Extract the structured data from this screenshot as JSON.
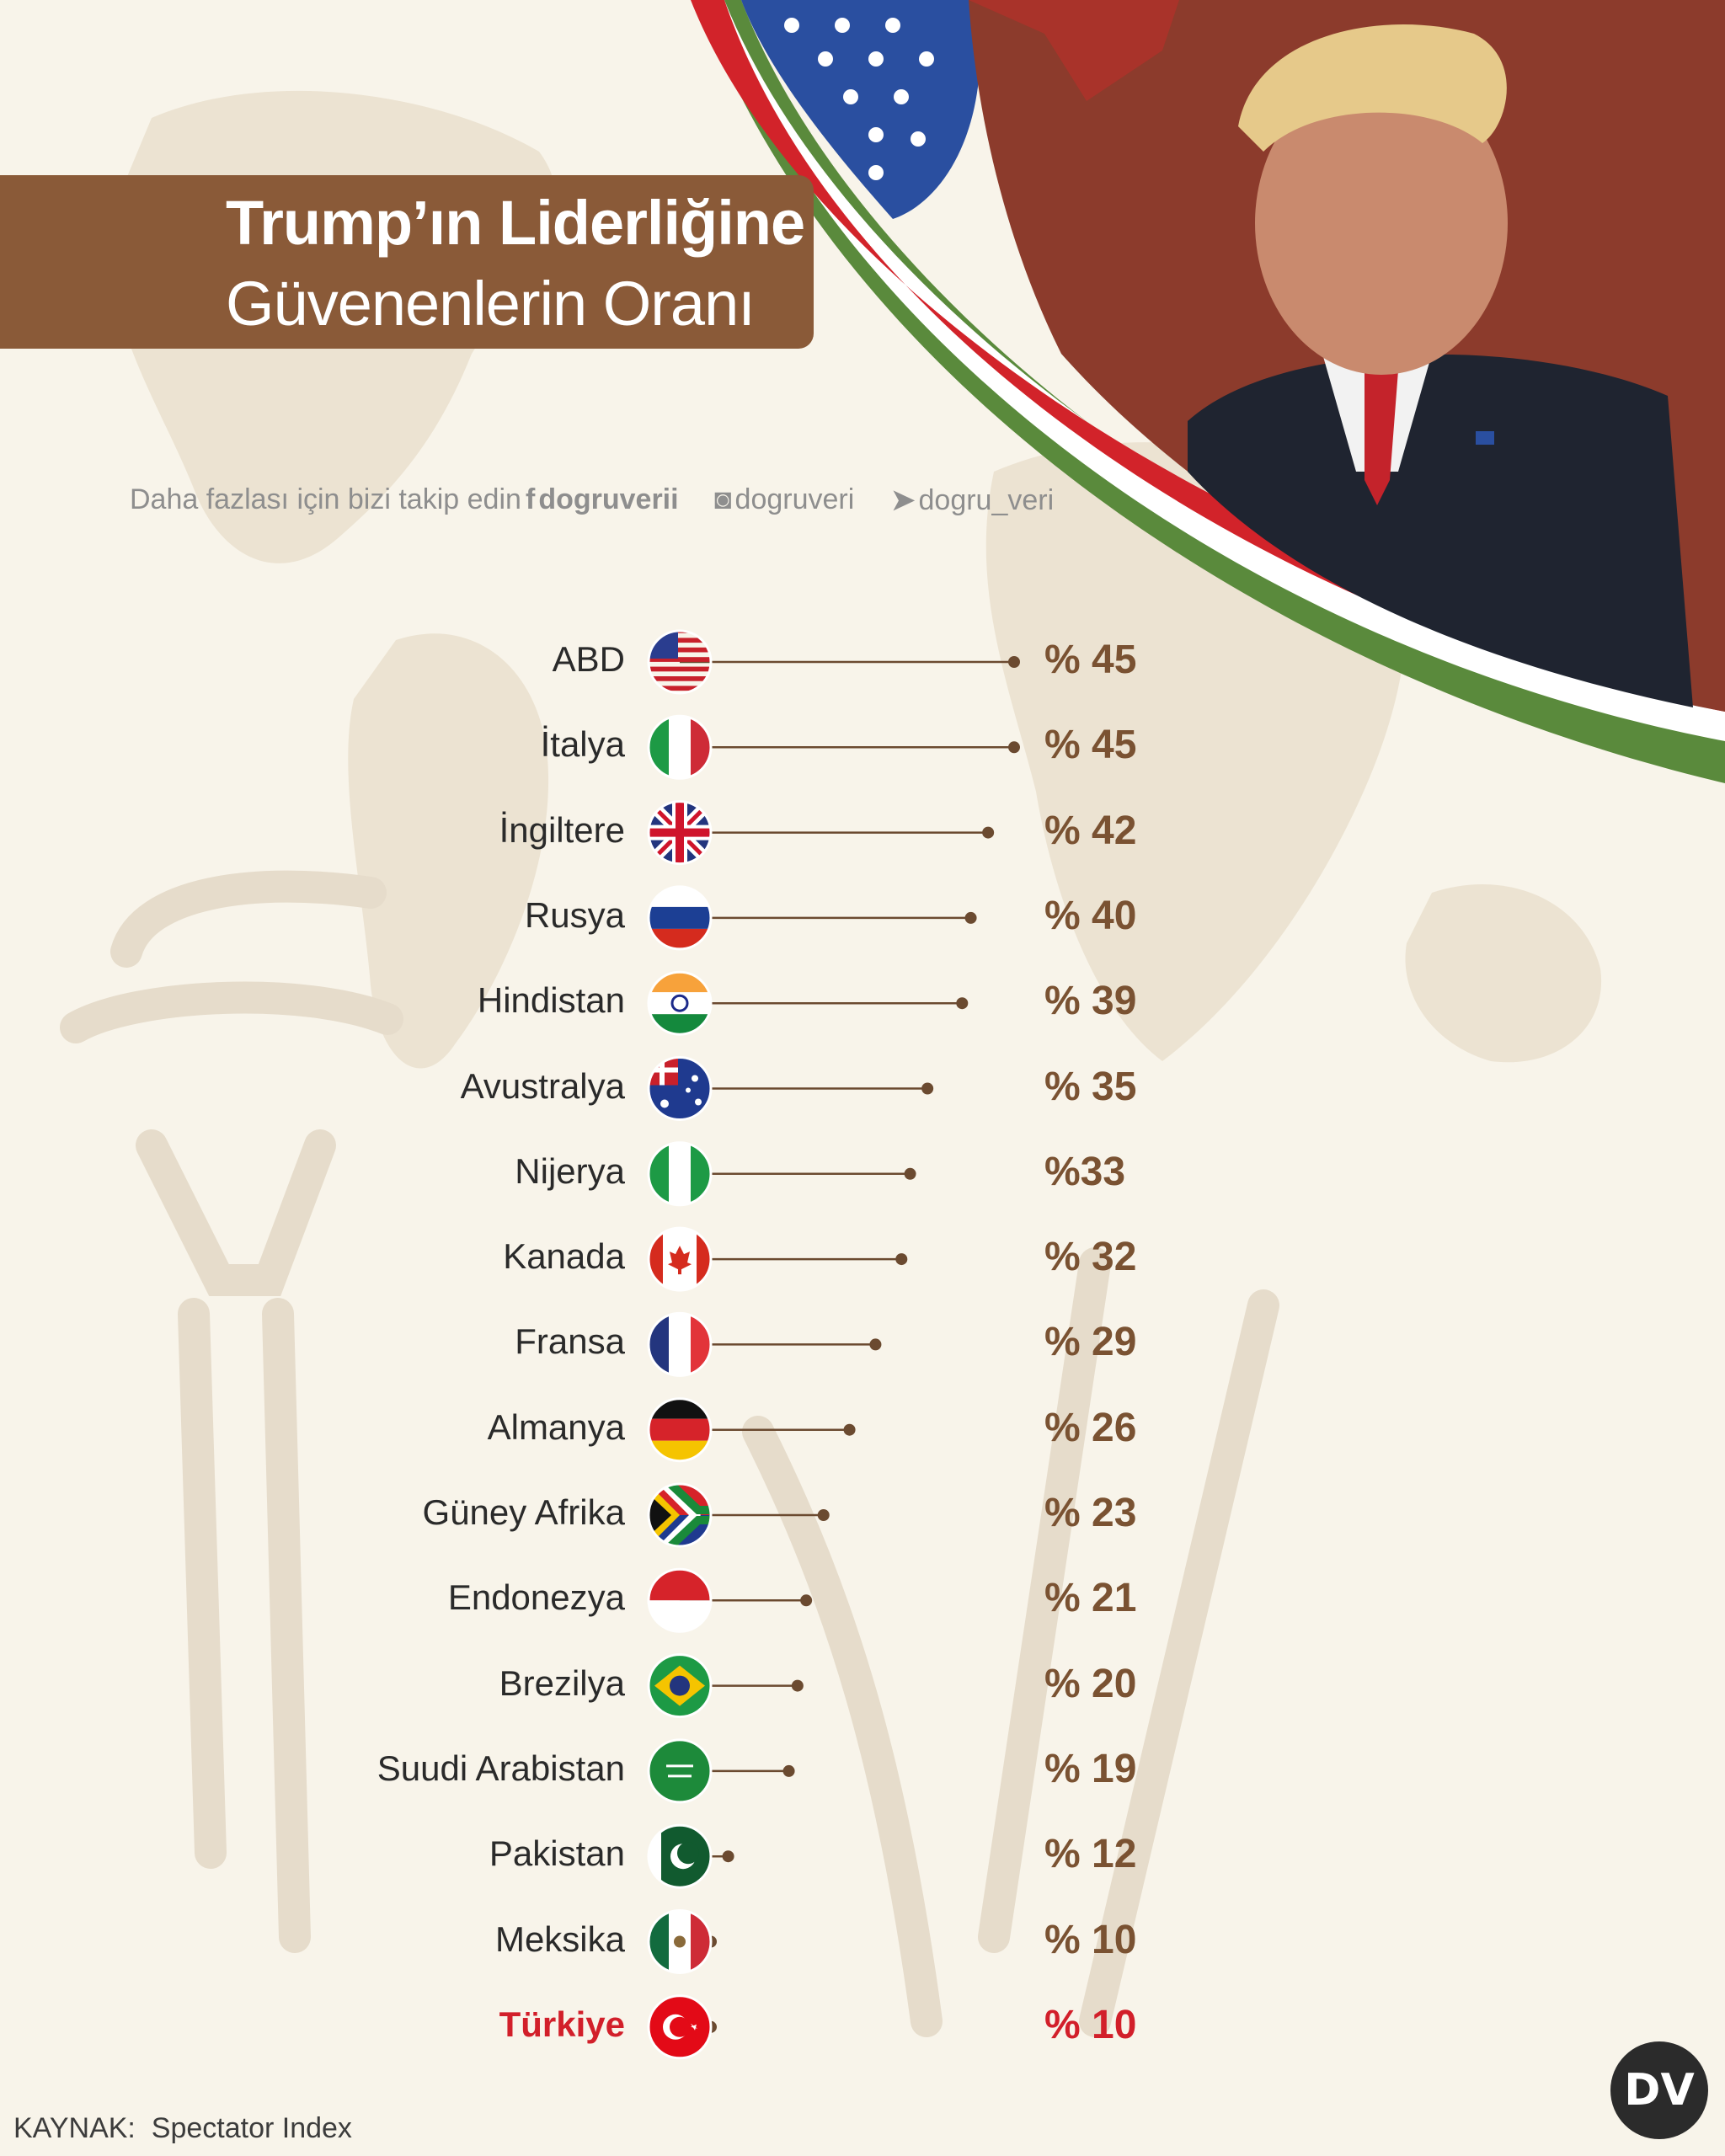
{
  "title": {
    "line1": "Trump’ın Liderliğine",
    "line2": "Güvenenlerin Oranı"
  },
  "follow": {
    "text": "Daha fazlası için bizi takip edin",
    "facebook": "dogruverii",
    "instagram": "dogruveri",
    "twitter": "dogru_veri"
  },
  "source": {
    "label": "KAYNAK:",
    "name": "Spectator Index"
  },
  "logo": {
    "text": "DV"
  },
  "colors": {
    "brown": "#8a5a38",
    "line": "#6b4a30",
    "highlight": "#d21f2a",
    "background": "#f8f4ea"
  },
  "chart_data": {
    "type": "bar",
    "title": "Trump’ın Liderliğine Güvenenlerin Oranı",
    "categories": [
      "ABD",
      "İtalya",
      "İngiltere",
      "Rusya",
      "Hindistan",
      "Avustralya",
      "Nijerya",
      "Kanada",
      "Fransa",
      "Almanya",
      "Güney Afrika",
      "Endonezya",
      "Brezilya",
      "Suudi Arabistan",
      "Pakistan",
      "Meksika",
      "Türkiye"
    ],
    "values": [
      45,
      45,
      42,
      40,
      39,
      35,
      33,
      32,
      29,
      26,
      23,
      21,
      20,
      19,
      12,
      10,
      10
    ],
    "labels": [
      "% 45",
      "% 45",
      "% 42",
      "% 40",
      "% 39",
      "% 35",
      "%33",
      "% 32",
      "% 29",
      "% 26",
      "% 23",
      "% 21",
      "% 20",
      "% 19",
      "% 12",
      "% 10",
      "% 10"
    ],
    "highlight": "Türkiye",
    "flags": [
      "usa-flag-icon",
      "italy-flag-icon",
      "uk-flag-icon",
      "russia-flag-icon",
      "india-flag-icon",
      "australia-flag-icon",
      "nigeria-flag-icon",
      "canada-flag-icon",
      "france-flag-icon",
      "germany-flag-icon",
      "south-africa-flag-icon",
      "indonesia-flag-icon",
      "brazil-flag-icon",
      "saudi-arabia-flag-icon",
      "pakistan-flag-icon",
      "mexico-flag-icon",
      "turkey-flag-icon"
    ]
  }
}
